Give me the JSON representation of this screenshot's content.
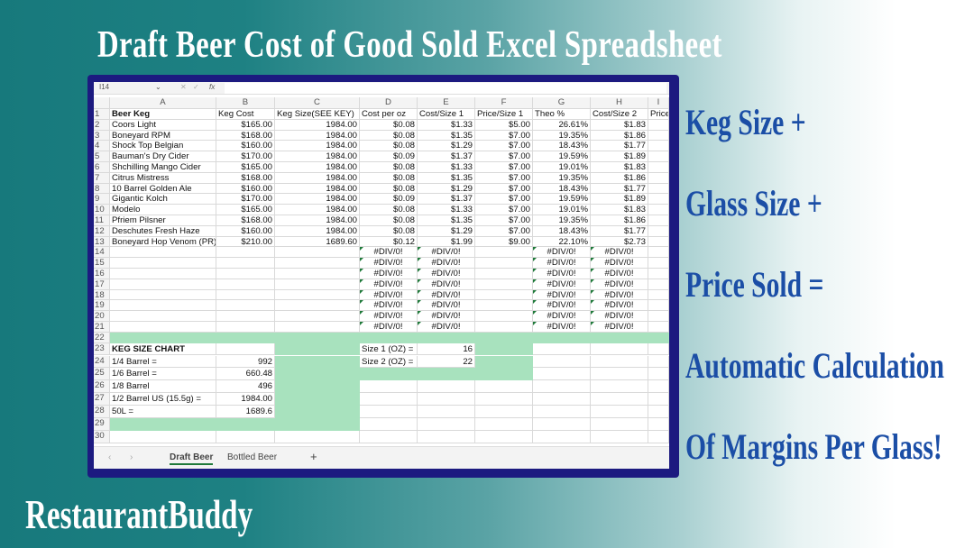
{
  "title": "Draft Beer Cost of Good Sold Excel Spreadsheet",
  "brand": "RestaurantBuddy",
  "side_text": [
    "Keg Size +",
    "Glass Size +",
    "Price Sold =",
    "Automatic Calculation",
    "Of Margins Per Glass!"
  ],
  "colors": {
    "frame": "#1c1a80",
    "green_fill": "#a8e2be",
    "side_text": "#1b4ea6"
  },
  "formula_bar": {
    "name_box": "I14",
    "fx": "fx"
  },
  "columns": [
    "A",
    "B",
    "C",
    "D",
    "E",
    "F",
    "G",
    "H",
    "I"
  ],
  "rows": [
    [
      "Beer Keg",
      "Keg Cost",
      "Keg Size(SEE KEY)",
      "Cost per oz",
      "Cost/Size 1",
      "Price/Size 1",
      "Theo %",
      "Cost/Size 2",
      "Price"
    ],
    [
      "Coors Light",
      "$165.00",
      "1984.00",
      "$0.08",
      "$1.33",
      "$5.00",
      "26.61%",
      "$1.83",
      ""
    ],
    [
      "Boneyard RPM",
      "$168.00",
      "1984.00",
      "$0.08",
      "$1.35",
      "$7.00",
      "19.35%",
      "$1.86",
      ""
    ],
    [
      "Shock Top Belgian",
      "$160.00",
      "1984.00",
      "$0.08",
      "$1.29",
      "$7.00",
      "18.43%",
      "$1.77",
      ""
    ],
    [
      "Bauman's Dry Cider",
      "$170.00",
      "1984.00",
      "$0.09",
      "$1.37",
      "$7.00",
      "19.59%",
      "$1.89",
      ""
    ],
    [
      "Shchilling Mango Cider",
      "$165.00",
      "1984.00",
      "$0.08",
      "$1.33",
      "$7.00",
      "19.01%",
      "$1.83",
      ""
    ],
    [
      "Citrus Mistress",
      "$168.00",
      "1984.00",
      "$0.08",
      "$1.35",
      "$7.00",
      "19.35%",
      "$1.86",
      ""
    ],
    [
      "10 Barrel Golden Ale",
      "$160.00",
      "1984.00",
      "$0.08",
      "$1.29",
      "$7.00",
      "18.43%",
      "$1.77",
      ""
    ],
    [
      "Gigantic Kolch",
      "$170.00",
      "1984.00",
      "$0.09",
      "$1.37",
      "$7.00",
      "19.59%",
      "$1.89",
      ""
    ],
    [
      "Modelo",
      "$165.00",
      "1984.00",
      "$0.08",
      "$1.33",
      "$7.00",
      "19.01%",
      "$1.83",
      ""
    ],
    [
      "Pfriem Pilsner",
      "$168.00",
      "1984.00",
      "$0.08",
      "$1.35",
      "$7.00",
      "19.35%",
      "$1.86",
      ""
    ],
    [
      "Deschutes Fresh Haze",
      "$160.00",
      "1984.00",
      "$0.08",
      "$1.29",
      "$7.00",
      "18.43%",
      "$1.77",
      ""
    ],
    [
      "Boneyard Hop Venom (PR)",
      "$210.00",
      "1689.60",
      "$0.12",
      "$1.99",
      "$9.00",
      "22.10%",
      "$2.73",
      ""
    ],
    [
      "",
      "",
      "",
      "#DIV/0!",
      "#DIV/0!",
      "",
      "#DIV/0!",
      "#DIV/0!",
      ""
    ],
    [
      "",
      "",
      "",
      "#DIV/0!",
      "#DIV/0!",
      "",
      "#DIV/0!",
      "#DIV/0!",
      ""
    ],
    [
      "",
      "",
      "",
      "#DIV/0!",
      "#DIV/0!",
      "",
      "#DIV/0!",
      "#DIV/0!",
      ""
    ],
    [
      "",
      "",
      "",
      "#DIV/0!",
      "#DIV/0!",
      "",
      "#DIV/0!",
      "#DIV/0!",
      ""
    ],
    [
      "",
      "",
      "",
      "#DIV/0!",
      "#DIV/0!",
      "",
      "#DIV/0!",
      "#DIV/0!",
      ""
    ],
    [
      "",
      "",
      "",
      "#DIV/0!",
      "#DIV/0!",
      "",
      "#DIV/0!",
      "#DIV/0!",
      ""
    ],
    [
      "",
      "",
      "",
      "#DIV/0!",
      "#DIV/0!",
      "",
      "#DIV/0!",
      "#DIV/0!",
      ""
    ],
    [
      "",
      "",
      "",
      "#DIV/0!",
      "#DIV/0!",
      "",
      "#DIV/0!",
      "#DIV/0!",
      ""
    ],
    [
      "",
      "",
      "",
      "",
      "",
      "",
      "",
      "",
      ""
    ],
    [
      "KEG SIZE CHART",
      "",
      "",
      "Size 1 (OZ) =",
      "16",
      "",
      "",
      "",
      ""
    ],
    [
      "1/4 Barrel =",
      "992",
      "",
      "Size 2 (OZ) =",
      "22",
      "",
      "",
      "",
      ""
    ],
    [
      "1/6 Barrel =",
      "660.48",
      "",
      "",
      "",
      "",
      "",
      "",
      ""
    ],
    [
      "1/8 Barrel",
      "496",
      "",
      "",
      "",
      "",
      "",
      "",
      ""
    ],
    [
      "1/2 Barrel US (15.5g) =",
      "1984.00",
      "",
      "",
      "",
      "",
      "",
      "",
      ""
    ],
    [
      "50L =",
      "1689.6",
      "",
      "",
      "",
      "",
      "",
      "",
      ""
    ],
    [
      "",
      "",
      "",
      "",
      "",
      "",
      "",
      "",
      ""
    ],
    [
      "",
      "",
      "",
      "",
      "",
      "",
      "",
      "",
      ""
    ]
  ],
  "tabs": {
    "prev": "‹",
    "next": "›",
    "items": [
      "Draft Beer",
      "Bottled Beer"
    ],
    "active": "Draft Beer",
    "add": "+"
  }
}
